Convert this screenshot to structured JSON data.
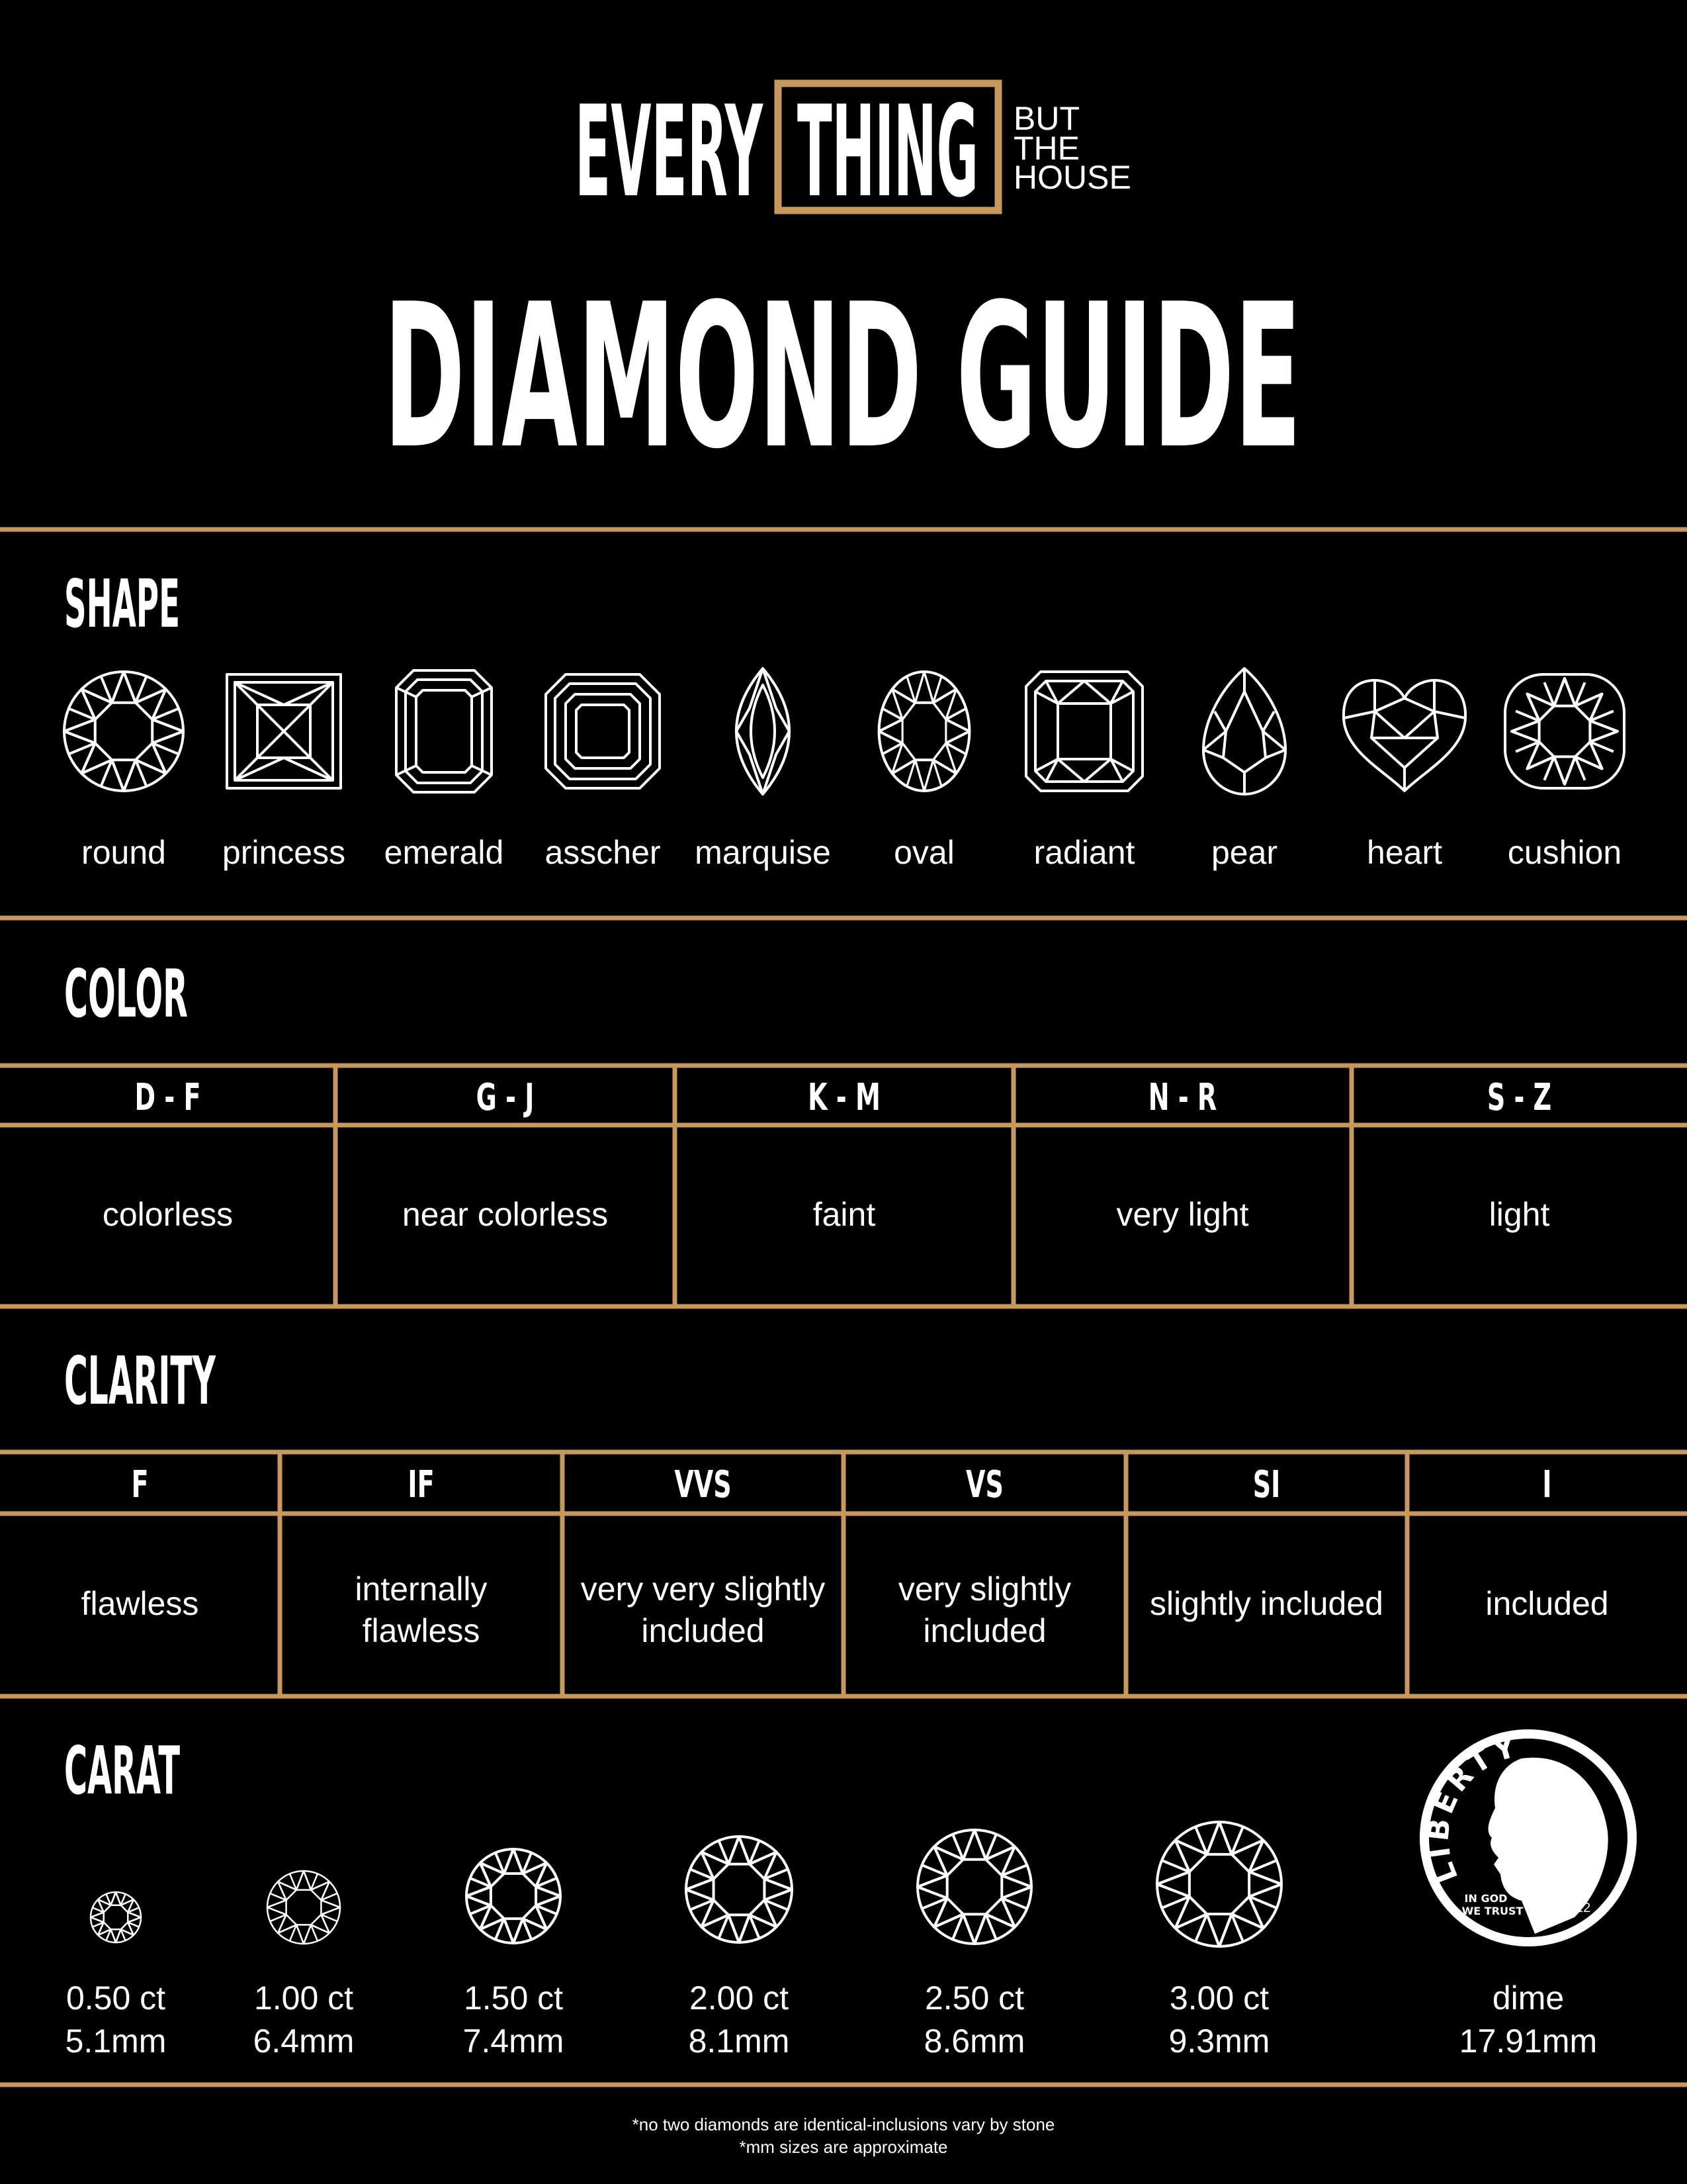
{
  "header": {
    "brand": [
      "EVERY",
      "THING"
    ],
    "tagline": [
      "BUT",
      "THE",
      "HOUSE"
    ],
    "title": "DIAMOND GUIDE"
  },
  "shape": {
    "heading": "SHAPE",
    "items": [
      "round",
      "princess",
      "emerald",
      "asscher",
      "marquise",
      "oval",
      "radiant",
      "pear",
      "heart",
      "cushion"
    ]
  },
  "color": {
    "heading": "COLOR",
    "grades": [
      "D - F",
      "G - J",
      "K - M",
      "N - R",
      "S - Z"
    ],
    "descriptions": [
      "colorless",
      "near colorless",
      "faint",
      "very light",
      "light"
    ]
  },
  "clarity": {
    "heading": "CLARITY",
    "grades": [
      "F",
      "IF",
      "VVS",
      "VS",
      "SI",
      "I"
    ],
    "descriptions": [
      [
        "flawless"
      ],
      [
        "internally",
        "flawless"
      ],
      [
        "very very slightly",
        "included"
      ],
      [
        "very slightly",
        "included"
      ],
      [
        "slightly included"
      ],
      [
        "included"
      ]
    ]
  },
  "carat": {
    "heading": "CARAT",
    "items": [
      {
        "weight": "0.50 ct",
        "size": "5.1mm"
      },
      {
        "weight": "1.00 ct",
        "size": "6.4mm"
      },
      {
        "weight": "1.50 ct",
        "size": "7.4mm"
      },
      {
        "weight": "2.00 ct",
        "size": "8.1mm"
      },
      {
        "weight": "2.50 ct",
        "size": "8.6mm"
      },
      {
        "weight": "3.00 ct",
        "size": "9.3mm"
      }
    ],
    "dime": {
      "label": "dime",
      "size": "17.91mm",
      "coin_text": [
        "LIBERTY",
        "IN GOD",
        "WE TRUST",
        "2022"
      ]
    }
  },
  "footer": [
    "*no two diamonds are identical-inclusions vary by stone",
    "*mm sizes are approximate"
  ]
}
